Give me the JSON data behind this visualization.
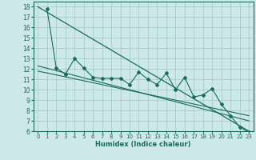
{
  "title": "",
  "xlabel": "Humidex (Indice chaleur)",
  "bg_color": "#cce8e8",
  "grid_color": "#aacccc",
  "line_color": "#1a6b5a",
  "xlim": [
    -0.5,
    23.5
  ],
  "ylim": [
    6,
    18.5
  ],
  "xticks": [
    0,
    1,
    2,
    3,
    4,
    5,
    6,
    7,
    8,
    9,
    10,
    11,
    12,
    13,
    14,
    15,
    16,
    17,
    18,
    19,
    20,
    21,
    22,
    23
  ],
  "yticks": [
    6,
    7,
    8,
    9,
    10,
    11,
    12,
    13,
    14,
    15,
    16,
    17,
    18
  ],
  "line1_x": [
    0,
    23
  ],
  "line1_y": [
    18.0,
    6.0
  ],
  "line2_x": [
    0,
    23
  ],
  "line2_y": [
    11.8,
    7.5
  ],
  "line3_x": [
    0,
    23
  ],
  "line3_y": [
    12.3,
    7.0
  ],
  "scatter_x": [
    1,
    2,
    3,
    4,
    5,
    6,
    7,
    8,
    9,
    10,
    11,
    12,
    13,
    14,
    15,
    16,
    17,
    18,
    19,
    20,
    21,
    22,
    23
  ],
  "scatter_y": [
    17.8,
    12.1,
    11.5,
    13.0,
    12.1,
    11.2,
    11.1,
    11.1,
    11.1,
    10.5,
    11.7,
    11.0,
    10.5,
    11.6,
    10.0,
    11.2,
    9.3,
    9.5,
    10.1,
    8.6,
    7.5,
    6.4,
    5.9
  ]
}
